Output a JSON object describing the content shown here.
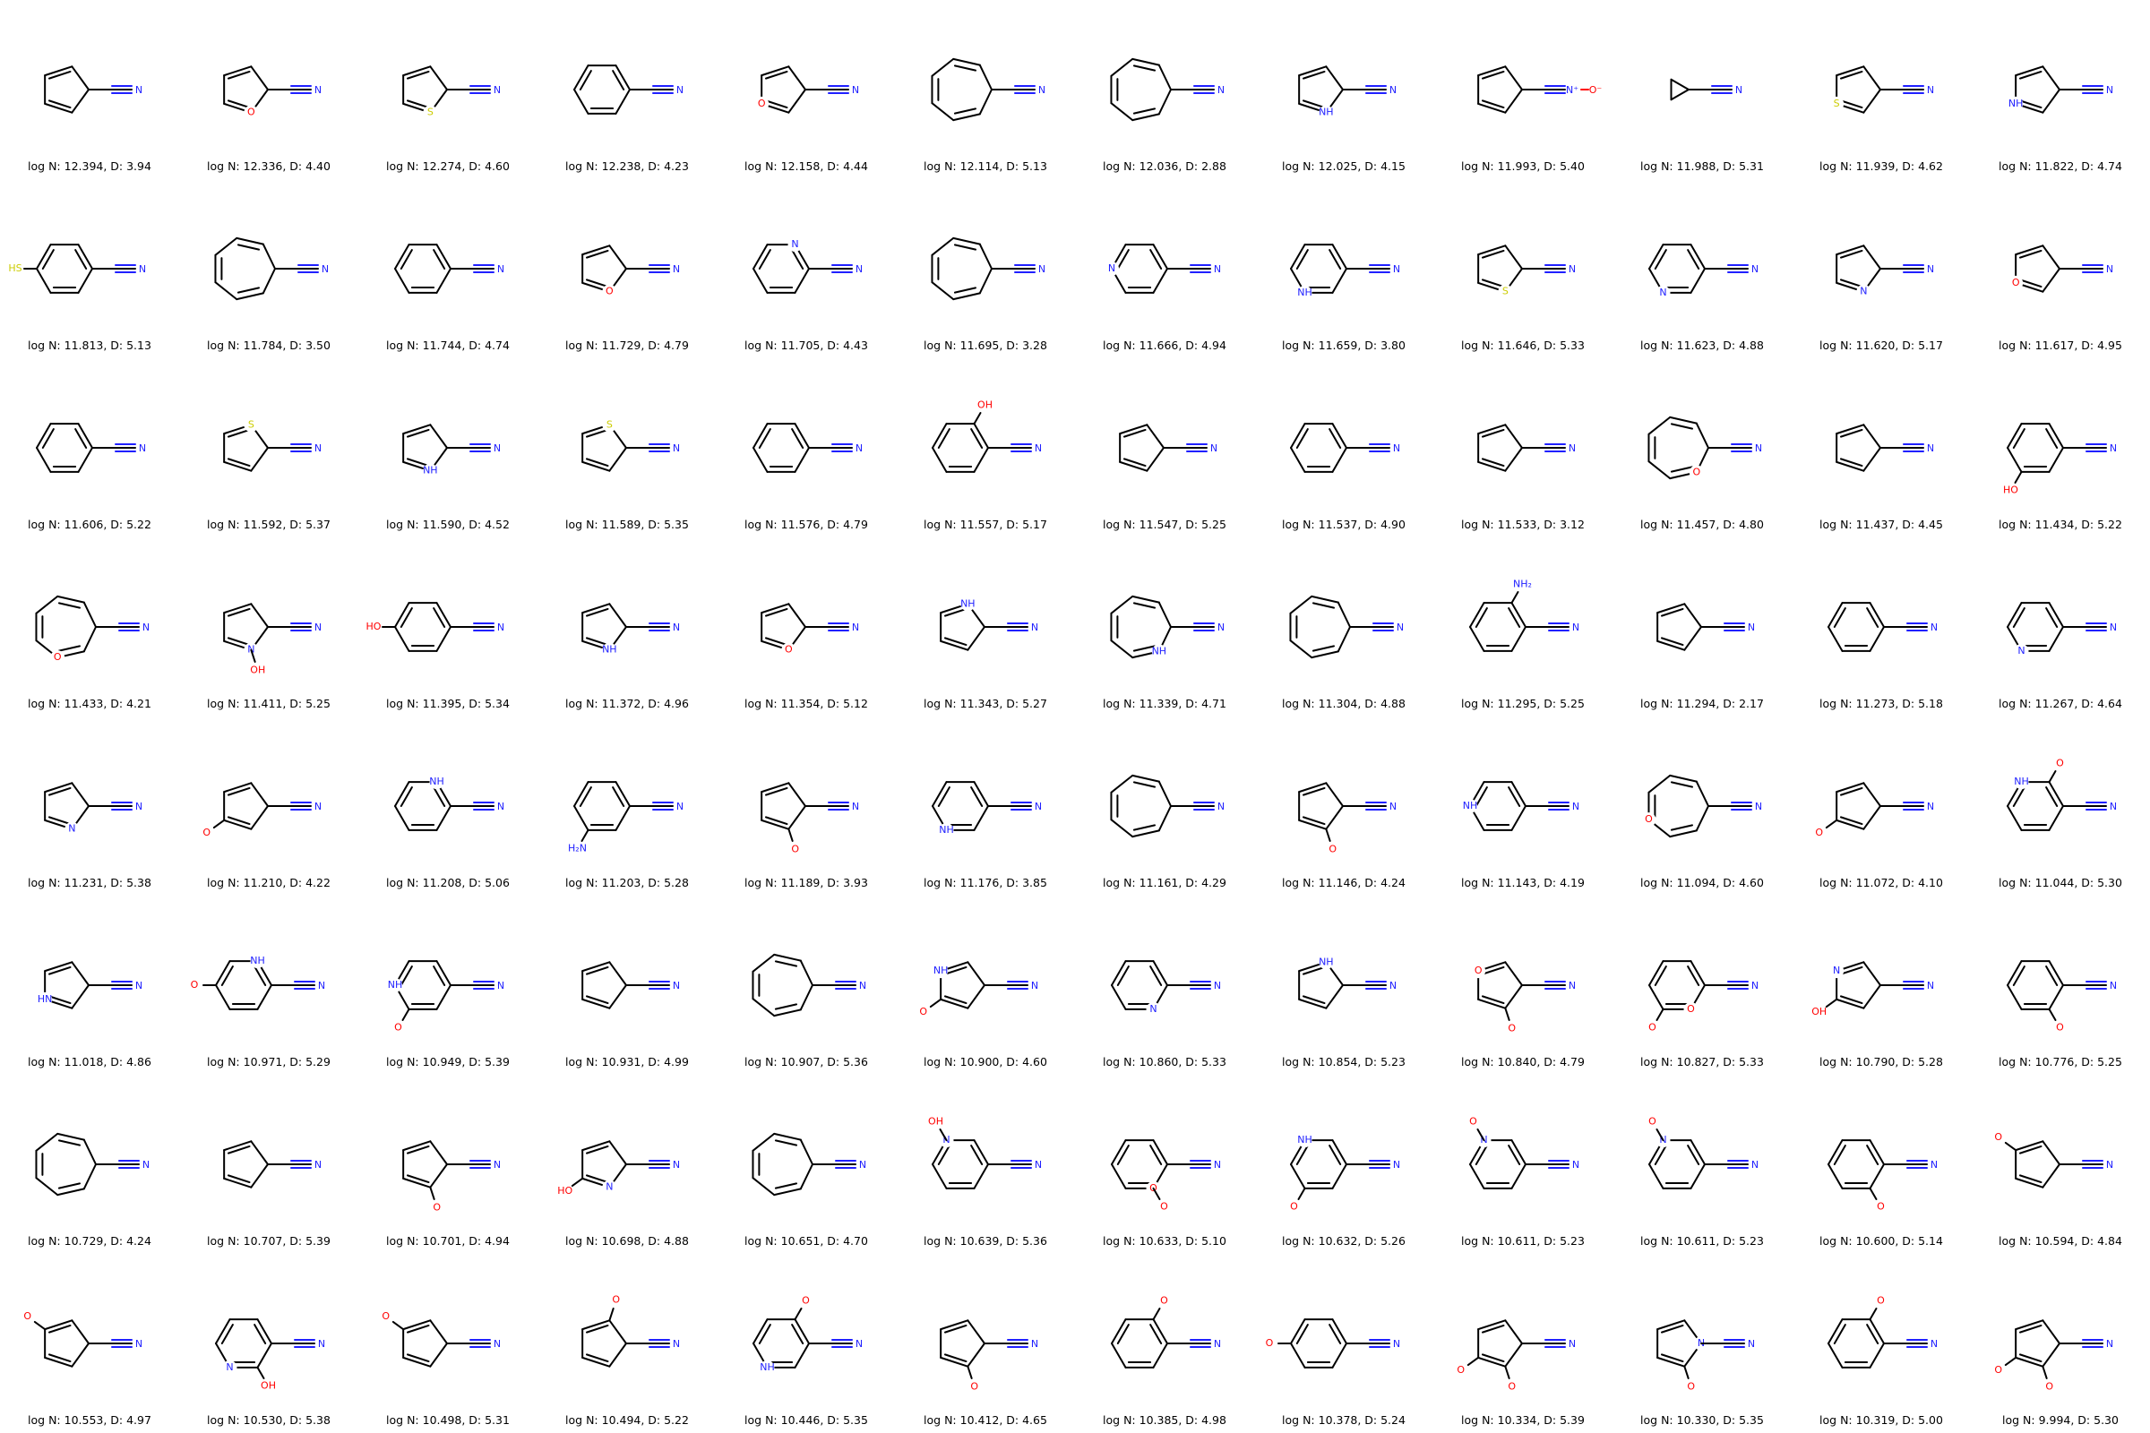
{
  "colors": {
    "bond": "#000000",
    "N": "#2020ff",
    "O": "#ff0000",
    "S": "#cccc00"
  },
  "molecules": [
    {
      "legend": "log N: 12.394, D: 3.94",
      "ring": 5,
      "sub": "CN",
      "het": []
    },
    {
      "legend": "log N: 12.336, D: 4.40",
      "ring": 5,
      "sub": "CN",
      "het": [
        {
          "pos": 1,
          "label": "O"
        }
      ]
    },
    {
      "legend": "log N: 12.274, D: 4.60",
      "ring": 5,
      "sub": "CN",
      "het": [
        {
          "pos": 1,
          "label": "S"
        }
      ]
    },
    {
      "legend": "log N: 12.238, D: 4.23",
      "ring": 6,
      "sub": "CN",
      "het": []
    },
    {
      "legend": "log N: 12.158, D: 4.44",
      "ring": 5,
      "sub": "CN",
      "het": [
        {
          "pos": 2,
          "label": "O"
        }
      ]
    },
    {
      "legend": "log N: 12.114, D: 5.13",
      "ring": 7,
      "sub": "CN",
      "het": []
    },
    {
      "legend": "log N: 12.036, D: 2.88",
      "ring": 7,
      "sub": "CN",
      "het": []
    },
    {
      "legend": "log N: 12.025, D: 4.15",
      "ring": 5,
      "sub": "CN",
      "het": [
        {
          "pos": 1,
          "label": "NH"
        }
      ]
    },
    {
      "legend": "log N: 11.993, D: 5.40",
      "ring": 5,
      "sub": "CNO",
      "het": []
    },
    {
      "legend": "log N: 11.988, D: 5.31",
      "ring": 3,
      "sub": "CN",
      "het": []
    },
    {
      "legend": "log N: 11.939, D: 4.62",
      "ring": 5,
      "sub": "CN",
      "het": [
        {
          "pos": 2,
          "label": "S"
        }
      ]
    },
    {
      "legend": "log N: 11.822, D: 4.74",
      "ring": 5,
      "sub": "CN",
      "het": [
        {
          "pos": 2,
          "label": "NH"
        }
      ]
    },
    {
      "legend": "log N: 11.813, D: 5.13",
      "ring": 6,
      "sub": "CN",
      "het": [
        {
          "pos": 3,
          "label": "HS",
          "ext": true
        }
      ]
    },
    {
      "legend": "log N: 11.784, D: 3.50",
      "ring": 7,
      "sub": "CN",
      "het": []
    },
    {
      "legend": "log N: 11.744, D: 4.74",
      "ring": 6,
      "sub": "CN",
      "het": []
    },
    {
      "legend": "log N: 11.729, D: 4.79",
      "ring": 5,
      "sub": "CN",
      "het": [
        {
          "pos": 1,
          "label": "O"
        }
      ]
    },
    {
      "legend": "log N: 11.705, D: 4.43",
      "ring": 6,
      "sub": "CN",
      "het": [
        {
          "pos": 5,
          "label": "N"
        }
      ]
    },
    {
      "legend": "log N: 11.695, D: 3.28",
      "ring": 7,
      "sub": "CN",
      "het": []
    },
    {
      "legend": "log N: 11.666, D: 4.94",
      "ring": 6,
      "sub": "CN",
      "het": [
        {
          "pos": 3,
          "label": "N"
        }
      ]
    },
    {
      "legend": "log N: 11.659, D: 3.80",
      "ring": 6,
      "sub": "CN",
      "het": [
        {
          "pos": 2,
          "label": "NH"
        }
      ]
    },
    {
      "legend": "log N: 11.646, D: 5.33",
      "ring": 5,
      "sub": "CN",
      "het": [
        {
          "pos": 1,
          "label": "S"
        }
      ]
    },
    {
      "legend": "log N: 11.623, D: 4.88",
      "ring": 6,
      "sub": "CN",
      "het": [
        {
          "pos": 2,
          "label": "N"
        }
      ]
    },
    {
      "legend": "log N: 11.620, D: 5.17",
      "ring": 5,
      "sub": "CN",
      "het": [
        {
          "pos": 1,
          "label": "N"
        }
      ]
    },
    {
      "legend": "log N: 11.617, D: 4.95",
      "ring": 5,
      "sub": "CN",
      "het": [
        {
          "pos": 2,
          "label": "O"
        }
      ]
    },
    {
      "legend": "log N: 11.606, D: 5.22",
      "ring": 6,
      "sub": "CN",
      "het": []
    },
    {
      "legend": "log N: 11.592, D: 5.37",
      "ring": 5,
      "sub": "CN",
      "het": [
        {
          "pos": 4,
          "label": "S"
        }
      ]
    },
    {
      "legend": "log N: 11.590, D: 4.52",
      "ring": 5,
      "sub": "CN",
      "het": [
        {
          "pos": 1,
          "label": "NH"
        }
      ]
    },
    {
      "legend": "log N: 11.589, D: 5.35",
      "ring": 5,
      "sub": "CN",
      "het": [
        {
          "pos": 4,
          "label": "S"
        }
      ]
    },
    {
      "legend": "log N: 11.576, D: 4.79",
      "ring": 6,
      "sub": "CN",
      "het": []
    },
    {
      "legend": "log N: 11.557, D: 5.17",
      "ring": 6,
      "sub": "CN",
      "het": [
        {
          "pos": 5,
          "label": "OH",
          "ext": true
        }
      ]
    },
    {
      "legend": "log N: 11.547, D: 5.25",
      "ring": 5,
      "sub": "CN",
      "het": []
    },
    {
      "legend": "log N: 11.537, D: 4.90",
      "ring": 6,
      "sub": "CN",
      "het": []
    },
    {
      "legend": "log N: 11.533, D: 3.12",
      "ring": 5,
      "sub": "CN",
      "het": []
    },
    {
      "legend": "log N: 11.457, D: 4.80",
      "ring": 7,
      "sub": "CN",
      "het": [
        {
          "pos": 1,
          "label": "O"
        }
      ]
    },
    {
      "legend": "log N: 11.437, D: 4.45",
      "ring": 5,
      "sub": "CN",
      "het": []
    },
    {
      "legend": "log N: 11.434, D: 5.22",
      "ring": 6,
      "sub": "CN",
      "het": [
        {
          "pos": 2,
          "label": "HO",
          "ext": true
        }
      ]
    },
    {
      "legend": "log N: 11.433, D: 4.21",
      "ring": 7,
      "sub": "CN",
      "het": [
        {
          "pos": 2,
          "label": "O"
        }
      ]
    },
    {
      "legend": "log N: 11.411, D: 5.25",
      "ring": 5,
      "sub": "CN",
      "het": [
        {
          "pos": 1,
          "label": "N"
        },
        {
          "pos": 1,
          "label": "OH",
          "ext": true
        }
      ]
    },
    {
      "legend": "log N: 11.395, D: 5.34",
      "ring": 6,
      "sub": "CN",
      "het": [
        {
          "pos": 3,
          "label": "HO",
          "ext": true
        }
      ]
    },
    {
      "legend": "log N: 11.372, D: 4.96",
      "ring": 5,
      "sub": "CN",
      "het": [
        {
          "pos": 1,
          "label": "NH"
        }
      ]
    },
    {
      "legend": "log N: 11.354, D: 5.12",
      "ring": 5,
      "sub": "CN",
      "het": [
        {
          "pos": 1,
          "label": "O"
        }
      ]
    },
    {
      "legend": "log N: 11.343, D: 5.27",
      "ring": 5,
      "sub": "CN",
      "het": [
        {
          "pos": 4,
          "label": "NH"
        }
      ]
    },
    {
      "legend": "log N: 11.339, D: 4.71",
      "ring": 7,
      "sub": "CN",
      "het": [
        {
          "pos": 1,
          "label": "NH"
        }
      ]
    },
    {
      "legend": "log N: 11.304, D: 4.88",
      "ring": 7,
      "sub": "CN",
      "het": []
    },
    {
      "legend": "log N: 11.295, D: 5.25",
      "ring": 6,
      "sub": "CN",
      "het": [
        {
          "pos": 5,
          "label": "NH₂",
          "ext": true
        }
      ]
    },
    {
      "legend": "log N: 11.294, D: 2.17",
      "ring": 5,
      "sub": "CN",
      "het": []
    },
    {
      "legend": "log N: 11.273, D: 5.18",
      "ring": 6,
      "sub": "CN",
      "het": []
    },
    {
      "legend": "log N: 11.267, D: 4.64",
      "ring": 6,
      "sub": "CN",
      "het": [
        {
          "pos": 2,
          "label": "N"
        }
      ]
    },
    {
      "legend": "log N: 11.231, D: 5.38",
      "ring": 5,
      "sub": "CN",
      "het": [
        {
          "pos": 1,
          "label": "N"
        }
      ]
    },
    {
      "legend": "log N: 11.210, D: 4.22",
      "ring": 5,
      "sub": "CN",
      "het": [
        {
          "pos": 2,
          "label": "O",
          "ext": true
        }
      ]
    },
    {
      "legend": "log N: 11.208, D: 5.06",
      "ring": 6,
      "sub": "CN",
      "het": [
        {
          "pos": 5,
          "label": "NH"
        }
      ]
    },
    {
      "legend": "log N: 11.203, D: 5.28",
      "ring": 6,
      "sub": "CN",
      "het": [
        {
          "pos": 2,
          "label": "H₂N",
          "ext": true
        }
      ]
    },
    {
      "legend": "log N: 11.189, D: 3.93",
      "ring": 5,
      "sub": "CN",
      "het": [
        {
          "pos": 1,
          "label": "O",
          "ext": true
        }
      ]
    },
    {
      "legend": "log N: 11.176, D: 3.85",
      "ring": 6,
      "sub": "CN",
      "het": [
        {
          "pos": 2,
          "label": "NH"
        }
      ]
    },
    {
      "legend": "log N: 11.161, D: 4.29",
      "ring": 7,
      "sub": "CN",
      "het": []
    },
    {
      "legend": "log N: 11.146, D: 4.24",
      "ring": 5,
      "sub": "CN",
      "het": [
        {
          "pos": 1,
          "label": "O",
          "ext": true
        }
      ]
    },
    {
      "legend": "log N: 11.143, D: 4.19",
      "ring": 6,
      "sub": "CN",
      "het": [
        {
          "pos": 3,
          "label": "NH"
        }
      ]
    },
    {
      "legend": "log N: 11.094, D: 4.60",
      "ring": 7,
      "sub": "CN",
      "het": [
        {
          "pos": 3,
          "label": "O"
        }
      ]
    },
    {
      "legend": "log N: 11.072, D: 4.10",
      "ring": 5,
      "sub": "CN",
      "het": [
        {
          "pos": 2,
          "label": "O",
          "ext": true
        }
      ]
    },
    {
      "legend": "log N: 11.044, D: 5.30",
      "ring": 6,
      "sub": "CN",
      "het": [
        {
          "pos": 4,
          "label": "NH"
        },
        {
          "pos": 5,
          "label": "O",
          "ext": true
        }
      ]
    },
    {
      "legend": "log N: 11.018, D: 4.86",
      "ring": 5,
      "sub": "CN",
      "het": [
        {
          "pos": 2,
          "label": "HN"
        }
      ]
    },
    {
      "legend": "log N: 10.971, D: 5.29",
      "ring": 6,
      "sub": "CN",
      "het": [
        {
          "pos": 5,
          "label": "NH"
        },
        {
          "pos": 3,
          "label": "O",
          "ext": true
        }
      ]
    },
    {
      "legend": "log N: 10.949, D: 5.39",
      "ring": 6,
      "sub": "CN",
      "het": [
        {
          "pos": 3,
          "label": "NH"
        },
        {
          "pos": 2,
          "label": "O",
          "ext": true
        }
      ]
    },
    {
      "legend": "log N: 10.931, D: 4.99",
      "ring": 5,
      "sub": "CN",
      "het": []
    },
    {
      "legend": "log N: 10.907, D: 5.36",
      "ring": 7,
      "sub": "CN",
      "het": []
    },
    {
      "legend": "log N: 10.900, D: 4.60",
      "ring": 5,
      "sub": "CN",
      "het": [
        {
          "pos": 3,
          "label": "NH"
        },
        {
          "pos": 2,
          "label": "O",
          "ext": true
        }
      ]
    },
    {
      "legend": "log N: 10.860, D: 5.33",
      "ring": 6,
      "sub": "CN",
      "het": [
        {
          "pos": 1,
          "label": "N"
        }
      ]
    },
    {
      "legend": "log N: 10.854, D: 5.23",
      "ring": 5,
      "sub": "CN",
      "het": [
        {
          "pos": 4,
          "label": "NH"
        }
      ]
    },
    {
      "legend": "log N: 10.840, D: 4.79",
      "ring": 5,
      "sub": "CN",
      "het": [
        {
          "pos": 3,
          "label": "O"
        },
        {
          "pos": 1,
          "label": "O",
          "ext": true
        }
      ]
    },
    {
      "legend": "log N: 10.827, D: 5.33",
      "ring": 6,
      "sub": "CN",
      "het": [
        {
          "pos": 1,
          "label": "O"
        },
        {
          "pos": 2,
          "label": "O",
          "ext": true
        }
      ]
    },
    {
      "legend": "log N: 10.790, D: 5.28",
      "ring": 5,
      "sub": "CN",
      "het": [
        {
          "pos": 3,
          "label": "N"
        },
        {
          "pos": 2,
          "label": "OH",
          "ext": true
        }
      ]
    },
    {
      "legend": "log N: 10.776, D: 5.25",
      "ring": 6,
      "sub": "CN",
      "het": [
        {
          "pos": 1,
          "label": "O",
          "ext": true
        }
      ]
    },
    {
      "legend": "log N: 10.729, D: 4.24",
      "ring": 7,
      "sub": "CN",
      "het": []
    },
    {
      "legend": "log N: 10.707, D: 5.39",
      "ring": 5,
      "sub": "CN",
      "het": []
    },
    {
      "legend": "log N: 10.701, D: 4.94",
      "ring": 5,
      "sub": "CN",
      "het": [
        {
          "pos": 1,
          "label": "O",
          "ext": true
        }
      ]
    },
    {
      "legend": "log N: 10.698, D: 4.88",
      "ring": 5,
      "sub": "CN",
      "het": [
        {
          "pos": 1,
          "label": "N"
        },
        {
          "pos": 2,
          "label": "HO",
          "ext": true
        }
      ]
    },
    {
      "legend": "log N: 10.651, D: 4.70",
      "ring": 7,
      "sub": "CN",
      "het": []
    },
    {
      "legend": "log N: 10.639, D: 5.36",
      "ring": 6,
      "sub": "CN",
      "het": [
        {
          "pos": 4,
          "label": "N"
        },
        {
          "pos": 4,
          "label": "OH",
          "ext": true
        }
      ]
    },
    {
      "legend": "log N: 10.633, D: 5.10",
      "ring": 6,
      "sub": "CN",
      "het": [
        {
          "pos": 1,
          "label": "O"
        },
        {
          "pos": 1,
          "label": "O",
          "ext": true
        }
      ]
    },
    {
      "legend": "log N: 10.632, D: 5.26",
      "ring": 6,
      "sub": "CN",
      "het": [
        {
          "pos": 4,
          "label": "NH"
        },
        {
          "pos": 2,
          "label": "O",
          "ext": true
        }
      ]
    },
    {
      "legend": "log N: 10.611, D: 5.23",
      "ring": 6,
      "sub": "CN",
      "het": [
        {
          "pos": 4,
          "label": "N"
        },
        {
          "pos": 4,
          "label": "O",
          "ext": true
        }
      ]
    },
    {
      "legend": "log N: 10.611, D: 5.23",
      "ring": 6,
      "sub": "CN",
      "het": [
        {
          "pos": 4,
          "label": "N"
        },
        {
          "pos": 4,
          "label": "O",
          "ext": true
        }
      ]
    },
    {
      "legend": "log N: 10.600, D: 5.14",
      "ring": 6,
      "sub": "CN",
      "het": [
        {
          "pos": 1,
          "label": "O",
          "ext": true
        }
      ]
    },
    {
      "legend": "log N: 10.594, D: 4.84",
      "ring": 5,
      "sub": "CN",
      "het": [
        {
          "pos": 3,
          "label": "O",
          "ext": true
        }
      ]
    },
    {
      "legend": "log N: 10.553, D: 4.97",
      "ring": 5,
      "sub": "CN",
      "het": [
        {
          "pos": 3,
          "label": "O",
          "ext": true
        }
      ]
    },
    {
      "legend": "log N: 10.530, D: 5.38",
      "ring": 6,
      "sub": "CN",
      "het": [
        {
          "pos": 2,
          "label": "N"
        },
        {
          "pos": 1,
          "label": "OH",
          "ext": true
        }
      ]
    },
    {
      "legend": "log N: 10.498, D: 5.31",
      "ring": 5,
      "sub": "CN",
      "het": [
        {
          "pos": 3,
          "label": "O",
          "ext": true
        }
      ]
    },
    {
      "legend": "log N: 10.494, D: 5.22",
      "ring": 5,
      "sub": "CN",
      "het": [
        {
          "pos": 4,
          "label": "O",
          "ext": true
        }
      ]
    },
    {
      "legend": "log N: 10.446, D: 5.35",
      "ring": 6,
      "sub": "CN",
      "het": [
        {
          "pos": 2,
          "label": "NH"
        },
        {
          "pos": 5,
          "label": "O",
          "ext": true
        }
      ]
    },
    {
      "legend": "log N: 10.412, D: 4.65",
      "ring": 5,
      "sub": "CN",
      "het": [
        {
          "pos": 1,
          "label": "O",
          "ext": true
        }
      ]
    },
    {
      "legend": "log N: 10.385, D: 4.98",
      "ring": 6,
      "sub": "CN",
      "het": [
        {
          "pos": 5,
          "label": "O",
          "ext": true
        }
      ]
    },
    {
      "legend": "log N: 10.378, D: 5.24",
      "ring": 6,
      "sub": "CN",
      "het": [
        {
          "pos": 3,
          "label": "O",
          "ext": true
        }
      ]
    },
    {
      "legend": "log N: 10.334, D: 5.39",
      "ring": 5,
      "sub": "CN",
      "het": [
        {
          "pos": 1,
          "label": "O",
          "ext": true
        },
        {
          "pos": 2,
          "label": "O",
          "ext": true
        }
      ]
    },
    {
      "legend": "log N: 10.330, D: 5.35",
      "ring": 5,
      "sub": "CN",
      "het": [
        {
          "pos": 0,
          "label": "N"
        },
        {
          "pos": 1,
          "label": "O",
          "ext": true
        }
      ]
    },
    {
      "legend": "log N: 10.319, D: 5.00",
      "ring": 6,
      "sub": "CN",
      "het": [
        {
          "pos": 5,
          "label": "O",
          "ext": true
        }
      ]
    },
    {
      "legend": "log N: 9.994, D: 5.30",
      "ring": 5,
      "sub": "CN",
      "het": [
        {
          "pos": 1,
          "label": "O",
          "ext": true
        },
        {
          "pos": 2,
          "label": "O",
          "ext": true
        }
      ]
    }
  ]
}
